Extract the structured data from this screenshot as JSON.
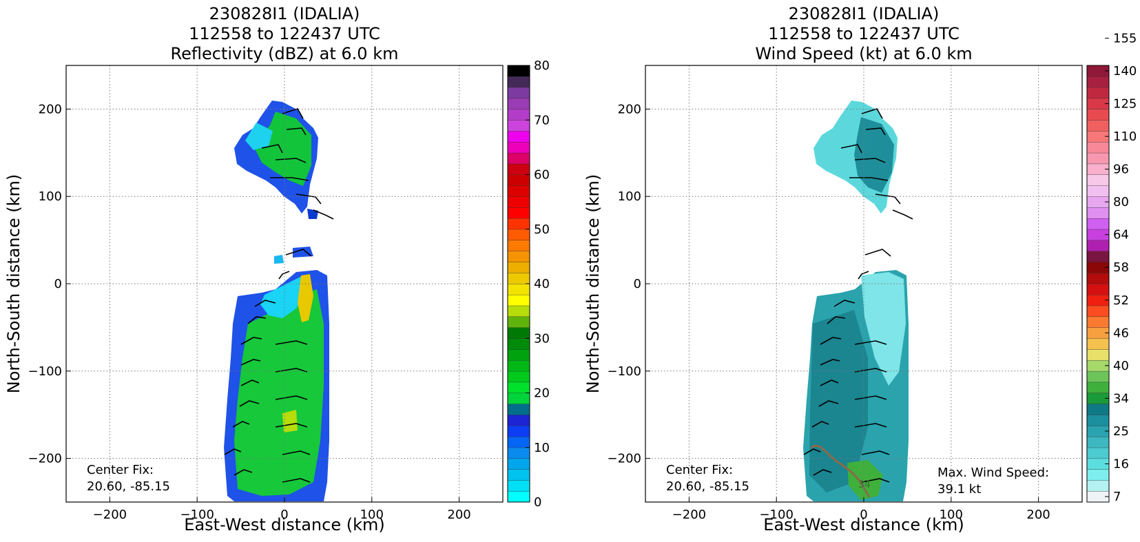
{
  "chart_data": [
    {
      "type": "heatmap",
      "title_lines": [
        "230828I1 (IDALIA)",
        "112558 to 122437 UTC",
        "Reflectivity (dBZ) at 6.0 km"
      ],
      "xlabel": "East-West distance (km)",
      "ylabel": "North-South distance (km)",
      "xlim": [
        -250,
        250
      ],
      "ylim": [
        -250,
        250
      ],
      "x_ticks": [
        -200,
        -100,
        0,
        100,
        200
      ],
      "y_ticks": [
        -200,
        -100,
        0,
        100,
        200
      ],
      "x_tick_labels": [
        "−200",
        "−100",
        "0",
        "100",
        "200"
      ],
      "y_tick_labels": [
        "−200",
        "−100",
        "0",
        "100",
        "200"
      ],
      "grid": true,
      "annotation_left": [
        "Center Fix:",
        "20.60, -85.15"
      ],
      "annotation_right": [],
      "colorbar": {
        "min": 0,
        "max": 80,
        "ticks": [
          0,
          10,
          20,
          30,
          40,
          50,
          60,
          70,
          80
        ],
        "tick_labels": [
          "0",
          "10",
          "20",
          "30",
          "40",
          "50",
          "60",
          "70",
          "80"
        ],
        "colors": [
          "#00ffff",
          "#00e0f5",
          "#00c3f0",
          "#00a7ee",
          "#0a8bf0",
          "#0566f5",
          "#0d3ef5",
          "#1d24d4",
          "#006e8c",
          "#00d43b",
          "#00e12c",
          "#00cb1c",
          "#00b815",
          "#00a20e",
          "#008b0a",
          "#007a05",
          "#5fb30a",
          "#b6dc0a",
          "#ffff00",
          "#f3e300",
          "#edc900",
          "#eeae00",
          "#f59400",
          "#ff7a00",
          "#ff5b00",
          "#ff3300",
          "#ff0000",
          "#ee0000",
          "#dd0000",
          "#cc0000",
          "#cc0011",
          "#dd0066",
          "#ee00bb",
          "#ee00ee",
          "#cc44dd",
          "#b33dc8",
          "#9a3cb4",
          "#7d3aa0",
          "#442a59",
          "#000000"
        ]
      },
      "echo_regions": [
        {
          "x": [
            -55,
            40
          ],
          "y": [
            100,
            200
          ],
          "level": "blue-green"
        },
        {
          "x": [
            -65,
            45
          ],
          "y": [
            -250,
            10
          ],
          "level": "green"
        },
        {
          "x": [
            20,
            35
          ],
          "y": [
            -45,
            5
          ],
          "level": "yellow"
        }
      ]
    },
    {
      "type": "heatmap",
      "title_lines": [
        "230828I1 (IDALIA)",
        "112558 to 122437 UTC",
        "Wind Speed (kt) at 6.0 km"
      ],
      "xlabel": "East-West distance (km)",
      "ylabel": "North-South distance (km)",
      "xlim": [
        -250,
        250
      ],
      "ylim": [
        -250,
        250
      ],
      "x_ticks": [
        -200,
        -100,
        0,
        100,
        200
      ],
      "y_ticks": [
        -200,
        -100,
        0,
        100,
        200
      ],
      "x_tick_labels": [
        "−200",
        "−100",
        "0",
        "100",
        "200"
      ],
      "y_tick_labels": [
        "−200",
        "−100",
        "0",
        "100",
        "200"
      ],
      "grid": true,
      "annotation_left": [
        "Center Fix:",
        "20.60, -85.15"
      ],
      "annotation_right": [
        "Max. Wind Speed:",
        "39.1 kt"
      ],
      "contour_label": "34",
      "colorbar": {
        "ticks": [
          7,
          16,
          25,
          34,
          40,
          46,
          52,
          58,
          64,
          80,
          96,
          110,
          125,
          140,
          155
        ],
        "tick_labels": [
          "7",
          "16",
          "25",
          "34",
          "40",
          "46",
          "52",
          "58",
          "64",
          "80",
          "96",
          "110",
          "125",
          "140",
          "155"
        ],
        "colors": [
          "#eef3f5",
          "#b4f2f2",
          "#7eeeee",
          "#5cdedf",
          "#4ccbd0",
          "#3db7c0",
          "#2ba3b0",
          "#1b8f9d",
          "#0f7a85",
          "#1a9a3a",
          "#3fb03b",
          "#6cc45a",
          "#a6d86a",
          "#e9e06a",
          "#f5c14e",
          "#f6a040",
          "#f97a30",
          "#fb4d20",
          "#f02010",
          "#d51010",
          "#b20c0c",
          "#8a0808",
          "#7a1440",
          "#b020b0",
          "#c840e0",
          "#d060f0",
          "#e090f0",
          "#e8a8f0",
          "#f2c0f0",
          "#f8c8e8",
          "#f8b0cc",
          "#f898b0",
          "#f88898",
          "#f87878",
          "#f06060",
          "#e84a50",
          "#d83848",
          "#c02840",
          "#a82040",
          "#901838"
        ]
      },
      "echo_regions": [
        {
          "x": [
            -55,
            40
          ],
          "y": [
            100,
            200
          ],
          "level": "16-25"
        },
        {
          "x": [
            -65,
            45
          ],
          "y": [
            -250,
            10
          ],
          "level": "16-34"
        }
      ]
    }
  ]
}
